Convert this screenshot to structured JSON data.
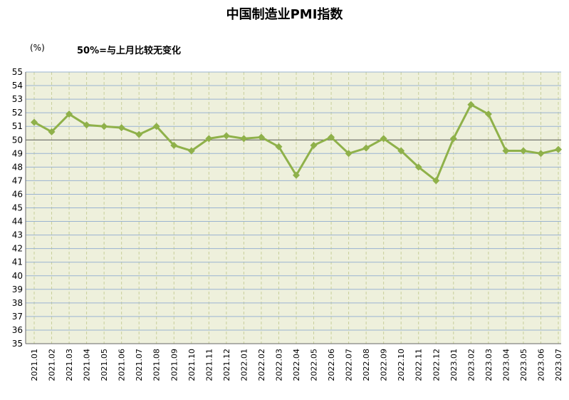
{
  "chart_data": {
    "type": "line",
    "title": "中国制造业PMI指数",
    "unit_label": "(%)",
    "annotation": "50%=与上月比较无变化",
    "xlabel": "",
    "ylabel": "",
    "ylim": [
      35,
      55
    ],
    "y_ticks": [
      35,
      36,
      37,
      38,
      39,
      40,
      41,
      42,
      43,
      44,
      45,
      46,
      47,
      48,
      49,
      50,
      51,
      52,
      53,
      54,
      55
    ],
    "reference_line": 50,
    "grid": true,
    "legend": "none",
    "colors": {
      "plot_background": "#eef0dc",
      "line": "#8fb14a",
      "grid_h": "#9ab3d1",
      "grid_v": "#c8cf9a",
      "reference": "#555555"
    },
    "categories": [
      "2021.01",
      "2021.02",
      "2021.03",
      "2021.04",
      "2021.05",
      "2021.06",
      "2021.07",
      "2021.08",
      "2021.09",
      "2021.10",
      "2021.11",
      "2021.12",
      "2022.01",
      "2022.02",
      "2022.03",
      "2022.04",
      "2022.05",
      "2022.06",
      "2022.07",
      "2022.08",
      "2022.09",
      "2022.10",
      "2022.11",
      "2022.12",
      "2023.01",
      "2023.02",
      "2023.03",
      "2023.04",
      "2023.05",
      "2023.06",
      "2023.07"
    ],
    "series": [
      {
        "values": [
          51.3,
          50.6,
          51.9,
          51.1,
          51.0,
          50.9,
          50.4,
          51.0,
          49.6,
          49.2,
          50.1,
          50.3,
          50.1,
          50.2,
          49.5,
          47.4,
          49.6,
          50.2,
          49.0,
          49.4,
          50.1,
          49.2,
          48.0,
          47.0,
          50.1,
          52.6,
          51.9,
          49.2,
          49.2,
          49.0,
          49.3
        ]
      }
    ]
  }
}
